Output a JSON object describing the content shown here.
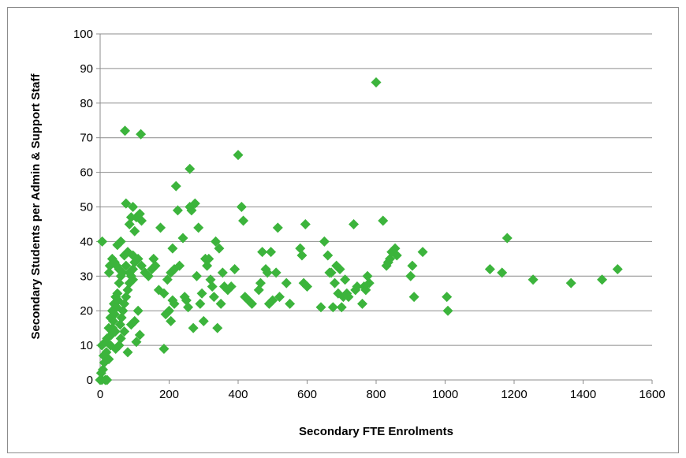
{
  "chart_data": {
    "type": "scatter",
    "title": "",
    "xlabel": "Secondary FTE Enrolments",
    "ylabel": "Secondary Students per Admin & Support Staff",
    "xlim": [
      0,
      1600
    ],
    "ylim": [
      0,
      100
    ],
    "x_ticks": [
      0,
      200,
      400,
      600,
      800,
      1000,
      1200,
      1400,
      1600
    ],
    "y_ticks": [
      0,
      10,
      20,
      30,
      40,
      50,
      60,
      70,
      80,
      90,
      100
    ],
    "grid": "horizontal",
    "legend": "none",
    "marker": "diamond",
    "marker_color": "#3cb43c",
    "points": [
      [
        0,
        0
      ],
      [
        5,
        0
      ],
      [
        15,
        0
      ],
      [
        20,
        0
      ],
      [
        3,
        2
      ],
      [
        8,
        3
      ],
      [
        12,
        5
      ],
      [
        10,
        7
      ],
      [
        18,
        8
      ],
      [
        25,
        6
      ],
      [
        30,
        10
      ],
      [
        5,
        10
      ],
      [
        15,
        11
      ],
      [
        20,
        12
      ],
      [
        6,
        40
      ],
      [
        25,
        15
      ],
      [
        30,
        18
      ],
      [
        35,
        20
      ],
      [
        40,
        22
      ],
      [
        45,
        24
      ],
      [
        50,
        25
      ],
      [
        55,
        28
      ],
      [
        60,
        30
      ],
      [
        38,
        17
      ],
      [
        42,
        19
      ],
      [
        48,
        21
      ],
      [
        52,
        23
      ],
      [
        32,
        13
      ],
      [
        36,
        15
      ],
      [
        44,
        14
      ],
      [
        58,
        16
      ],
      [
        62,
        18
      ],
      [
        66,
        20
      ],
      [
        70,
        22
      ],
      [
        75,
        24
      ],
      [
        80,
        26
      ],
      [
        85,
        28
      ],
      [
        90,
        30
      ],
      [
        95,
        32
      ],
      [
        100,
        34
      ],
      [
        26,
        31
      ],
      [
        28,
        33
      ],
      [
        35,
        35
      ],
      [
        42,
        34
      ],
      [
        48,
        33
      ],
      [
        55,
        32
      ],
      [
        65,
        31
      ],
      [
        75,
        33
      ],
      [
        85,
        31
      ],
      [
        95,
        29
      ],
      [
        45,
        9
      ],
      [
        55,
        10
      ],
      [
        60,
        12
      ],
      [
        70,
        14
      ],
      [
        80,
        8
      ],
      [
        90,
        16
      ],
      [
        100,
        17
      ],
      [
        110,
        20
      ],
      [
        105,
        11
      ],
      [
        115,
        13
      ],
      [
        72,
        72
      ],
      [
        118,
        71
      ],
      [
        75,
        51
      ],
      [
        95,
        50
      ],
      [
        105,
        47
      ],
      [
        115,
        48
      ],
      [
        120,
        46
      ],
      [
        90,
        47
      ],
      [
        85,
        45
      ],
      [
        100,
        43
      ],
      [
        50,
        39
      ],
      [
        60,
        40
      ],
      [
        70,
        36
      ],
      [
        80,
        37
      ],
      [
        95,
        36
      ],
      [
        110,
        35
      ],
      [
        120,
        33
      ],
      [
        130,
        31
      ],
      [
        140,
        30
      ],
      [
        150,
        32
      ],
      [
        155,
        35
      ],
      [
        160,
        33
      ],
      [
        170,
        26
      ],
      [
        175,
        44
      ],
      [
        185,
        25
      ],
      [
        190,
        19
      ],
      [
        200,
        20
      ],
      [
        205,
        17
      ],
      [
        210,
        23
      ],
      [
        215,
        22
      ],
      [
        185,
        9
      ],
      [
        195,
        29
      ],
      [
        205,
        31
      ],
      [
        210,
        38
      ],
      [
        220,
        56
      ],
      [
        225,
        49
      ],
      [
        215,
        32
      ],
      [
        230,
        33
      ],
      [
        240,
        41
      ],
      [
        245,
        24
      ],
      [
        250,
        23
      ],
      [
        255,
        21
      ],
      [
        260,
        61
      ],
      [
        265,
        49
      ],
      [
        270,
        15
      ],
      [
        275,
        51
      ],
      [
        280,
        30
      ],
      [
        285,
        44
      ],
      [
        290,
        22
      ],
      [
        295,
        25
      ],
      [
        260,
        50
      ],
      [
        300,
        17
      ],
      [
        305,
        35
      ],
      [
        310,
        33
      ],
      [
        315,
        35
      ],
      [
        320,
        29
      ],
      [
        325,
        27
      ],
      [
        330,
        24
      ],
      [
        335,
        40
      ],
      [
        340,
        15
      ],
      [
        345,
        38
      ],
      [
        350,
        22
      ],
      [
        355,
        31
      ],
      [
        360,
        27
      ],
      [
        370,
        26
      ],
      [
        380,
        27
      ],
      [
        390,
        32
      ],
      [
        400,
        65
      ],
      [
        410,
        50
      ],
      [
        415,
        46
      ],
      [
        420,
        24
      ],
      [
        430,
        23
      ],
      [
        440,
        22
      ],
      [
        460,
        26
      ],
      [
        465,
        28
      ],
      [
        470,
        37
      ],
      [
        480,
        32
      ],
      [
        485,
        31
      ],
      [
        490,
        22
      ],
      [
        495,
        37
      ],
      [
        500,
        23
      ],
      [
        510,
        31
      ],
      [
        515,
        44
      ],
      [
        520,
        24
      ],
      [
        540,
        28
      ],
      [
        550,
        22
      ],
      [
        580,
        38
      ],
      [
        585,
        36
      ],
      [
        590,
        28
      ],
      [
        595,
        45
      ],
      [
        600,
        27
      ],
      [
        640,
        21
      ],
      [
        650,
        40
      ],
      [
        660,
        36
      ],
      [
        665,
        31
      ],
      [
        670,
        31
      ],
      [
        675,
        21
      ],
      [
        680,
        28
      ],
      [
        685,
        33
      ],
      [
        690,
        25
      ],
      [
        695,
        32
      ],
      [
        700,
        21
      ],
      [
        705,
        24
      ],
      [
        710,
        29
      ],
      [
        715,
        25
      ],
      [
        720,
        24
      ],
      [
        735,
        45
      ],
      [
        740,
        26
      ],
      [
        745,
        27
      ],
      [
        760,
        22
      ],
      [
        765,
        27
      ],
      [
        770,
        26
      ],
      [
        775,
        30
      ],
      [
        780,
        28
      ],
      [
        800,
        86
      ],
      [
        820,
        46
      ],
      [
        830,
        33
      ],
      [
        835,
        34
      ],
      [
        840,
        35
      ],
      [
        845,
        37
      ],
      [
        855,
        38
      ],
      [
        860,
        36
      ],
      [
        900,
        30
      ],
      [
        905,
        33
      ],
      [
        910,
        24
      ],
      [
        935,
        37
      ],
      [
        1005,
        24
      ],
      [
        1008,
        20
      ],
      [
        1130,
        32
      ],
      [
        1165,
        31
      ],
      [
        1180,
        41
      ],
      [
        1255,
        29
      ],
      [
        1365,
        28
      ],
      [
        1455,
        29
      ],
      [
        1500,
        32
      ]
    ]
  }
}
